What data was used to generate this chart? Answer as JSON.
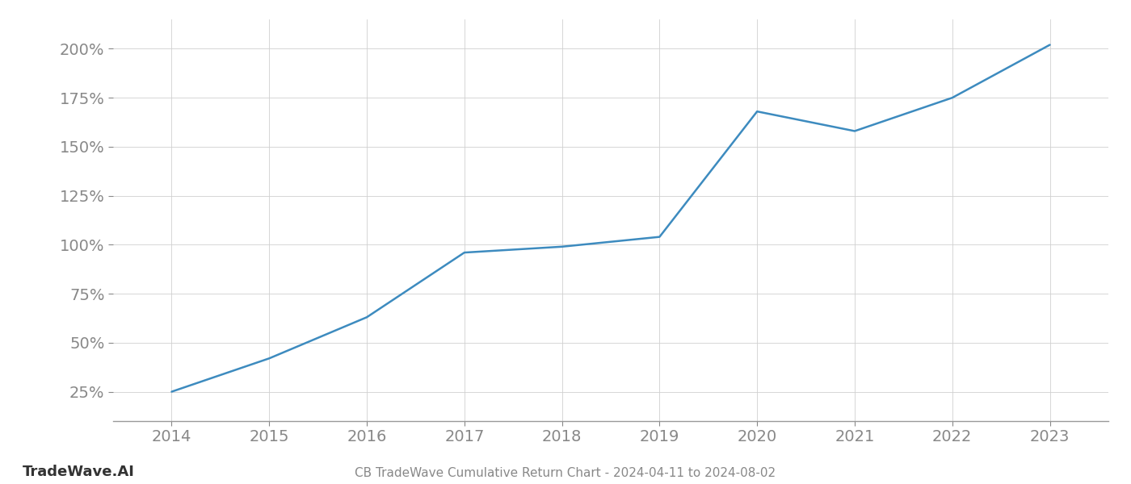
{
  "x_values": [
    2014,
    2015,
    2016,
    2017,
    2018,
    2019,
    2020,
    2021,
    2022,
    2023
  ],
  "y_values": [
    25,
    42,
    63,
    96,
    99,
    104,
    168,
    158,
    175,
    202
  ],
  "line_color": "#3d8bbf",
  "line_width": 1.8,
  "title": "CB TradeWave Cumulative Return Chart - 2024-04-11 to 2024-08-02",
  "watermark": "TradeWave.AI",
  "y_ticks": [
    25,
    50,
    75,
    100,
    125,
    150,
    175,
    200
  ],
  "x_ticks": [
    2014,
    2015,
    2016,
    2017,
    2018,
    2019,
    2020,
    2021,
    2022,
    2023
  ],
  "ylim": [
    10,
    215
  ],
  "xlim": [
    2013.4,
    2023.6
  ],
  "background_color": "#ffffff",
  "grid_color": "#d0d0d0",
  "title_fontsize": 11,
  "tick_fontsize": 14,
  "watermark_fontsize": 13,
  "axis_color": "#999999",
  "tick_label_color": "#888888"
}
